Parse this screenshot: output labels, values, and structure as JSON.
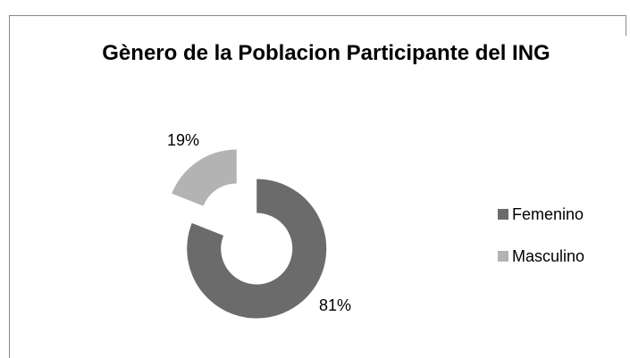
{
  "chart_data": {
    "type": "donut",
    "title": "Gènero de la Poblacion Participante del ING",
    "categories": [
      "Femenino",
      "Masculino"
    ],
    "values": [
      81,
      19
    ],
    "value_labels": [
      "81%",
      "19%"
    ],
    "colors": [
      "#6b6b6b",
      "#b3b3b3"
    ],
    "legend": "right"
  }
}
